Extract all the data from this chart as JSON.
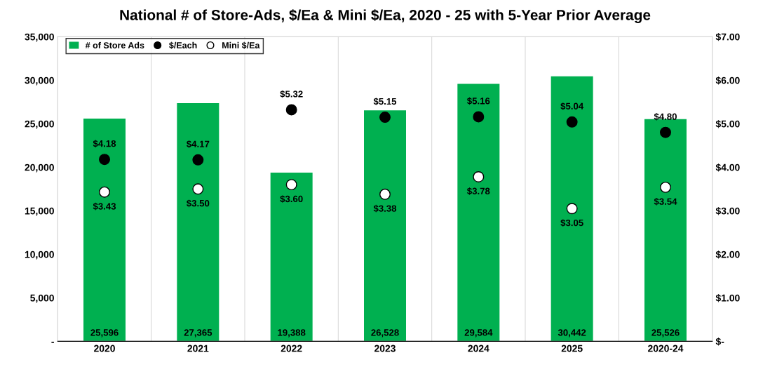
{
  "chart_data": {
    "type": "bar",
    "title": "National # of Store-Ads, $/Ea & Mini $/Ea, 2020 - 25 with 5-Year Prior Average",
    "categories": [
      "2020",
      "2021",
      "2022",
      "2023",
      "2024",
      "2025",
      "2020-24"
    ],
    "series": [
      {
        "name": "# of Store Ads",
        "type": "bar",
        "color": "#00b050",
        "values": [
          25596,
          27365,
          19388,
          26528,
          29584,
          30442,
          25526
        ],
        "value_labels": [
          "25,596",
          "27,365",
          "19,388",
          "26,528",
          "29,584",
          "30,442",
          "25,526"
        ]
      },
      {
        "name": "$/Each",
        "type": "scatter",
        "axis": "y2",
        "color": "#000000",
        "values": [
          4.18,
          4.17,
          5.32,
          5.15,
          5.16,
          5.04,
          4.8
        ],
        "value_labels": [
          "$4.18",
          "$4.17",
          "$5.32",
          "$5.15",
          "$5.16",
          "$5.04",
          "$4.80"
        ]
      },
      {
        "name": "Mini $/Ea",
        "type": "scatter",
        "axis": "y2",
        "color": "#ffffff",
        "values": [
          3.43,
          3.5,
          3.6,
          3.38,
          3.78,
          3.05,
          3.54
        ],
        "value_labels": [
          "$3.43",
          "$3.50",
          "$3.60",
          "$3.38",
          "$3.78",
          "$3.05",
          "$3.54"
        ]
      }
    ],
    "ylim": [
      0,
      35000
    ],
    "yticks": [
      {
        "value": 0,
        "label": "-"
      },
      {
        "value": 5000,
        "label": "5,000"
      },
      {
        "value": 10000,
        "label": "10,000"
      },
      {
        "value": 15000,
        "label": "15,000"
      },
      {
        "value": 20000,
        "label": "20,000"
      },
      {
        "value": 25000,
        "label": "25,000"
      },
      {
        "value": 30000,
        "label": "30,000"
      },
      {
        "value": 35000,
        "label": "35,000"
      }
    ],
    "y2lim": [
      0,
      7
    ],
    "y2ticks": [
      {
        "value": 0,
        "label": "$-"
      },
      {
        "value": 1,
        "label": "$1.00"
      },
      {
        "value": 2,
        "label": "$2.00"
      },
      {
        "value": 3,
        "label": "$3.00"
      },
      {
        "value": 4,
        "label": "$4.00"
      },
      {
        "value": 5,
        "label": "$5.00"
      },
      {
        "value": 6,
        "label": "$6.00"
      },
      {
        "value": 7,
        "label": "$7.00"
      }
    ],
    "grid": "x",
    "legend": "top left",
    "marker": "circle"
  }
}
